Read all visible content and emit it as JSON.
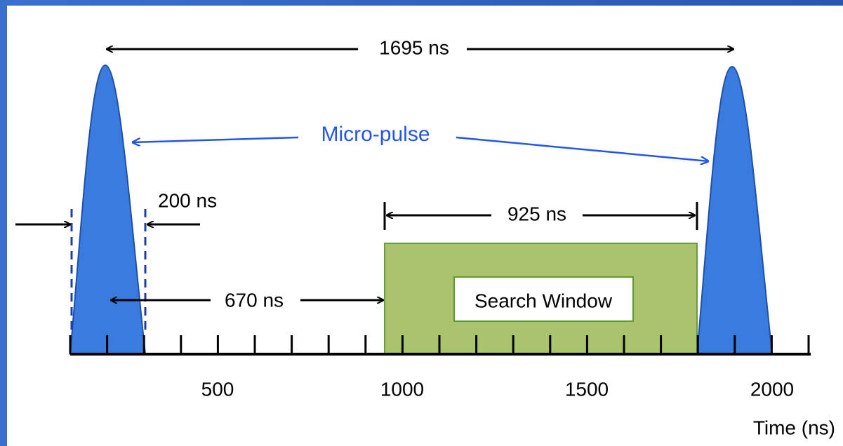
{
  "labels": {
    "period": "1695 ns",
    "micro_pulse": "Micro-pulse",
    "pulse_width": "200 ns",
    "window_width": "925 ns",
    "delay": "670 ns",
    "search_window": "Search Window"
  },
  "axis": {
    "tick_labels": [
      "500",
      "1000",
      "1500",
      "2000"
    ],
    "title": "Time (ns)"
  }
}
